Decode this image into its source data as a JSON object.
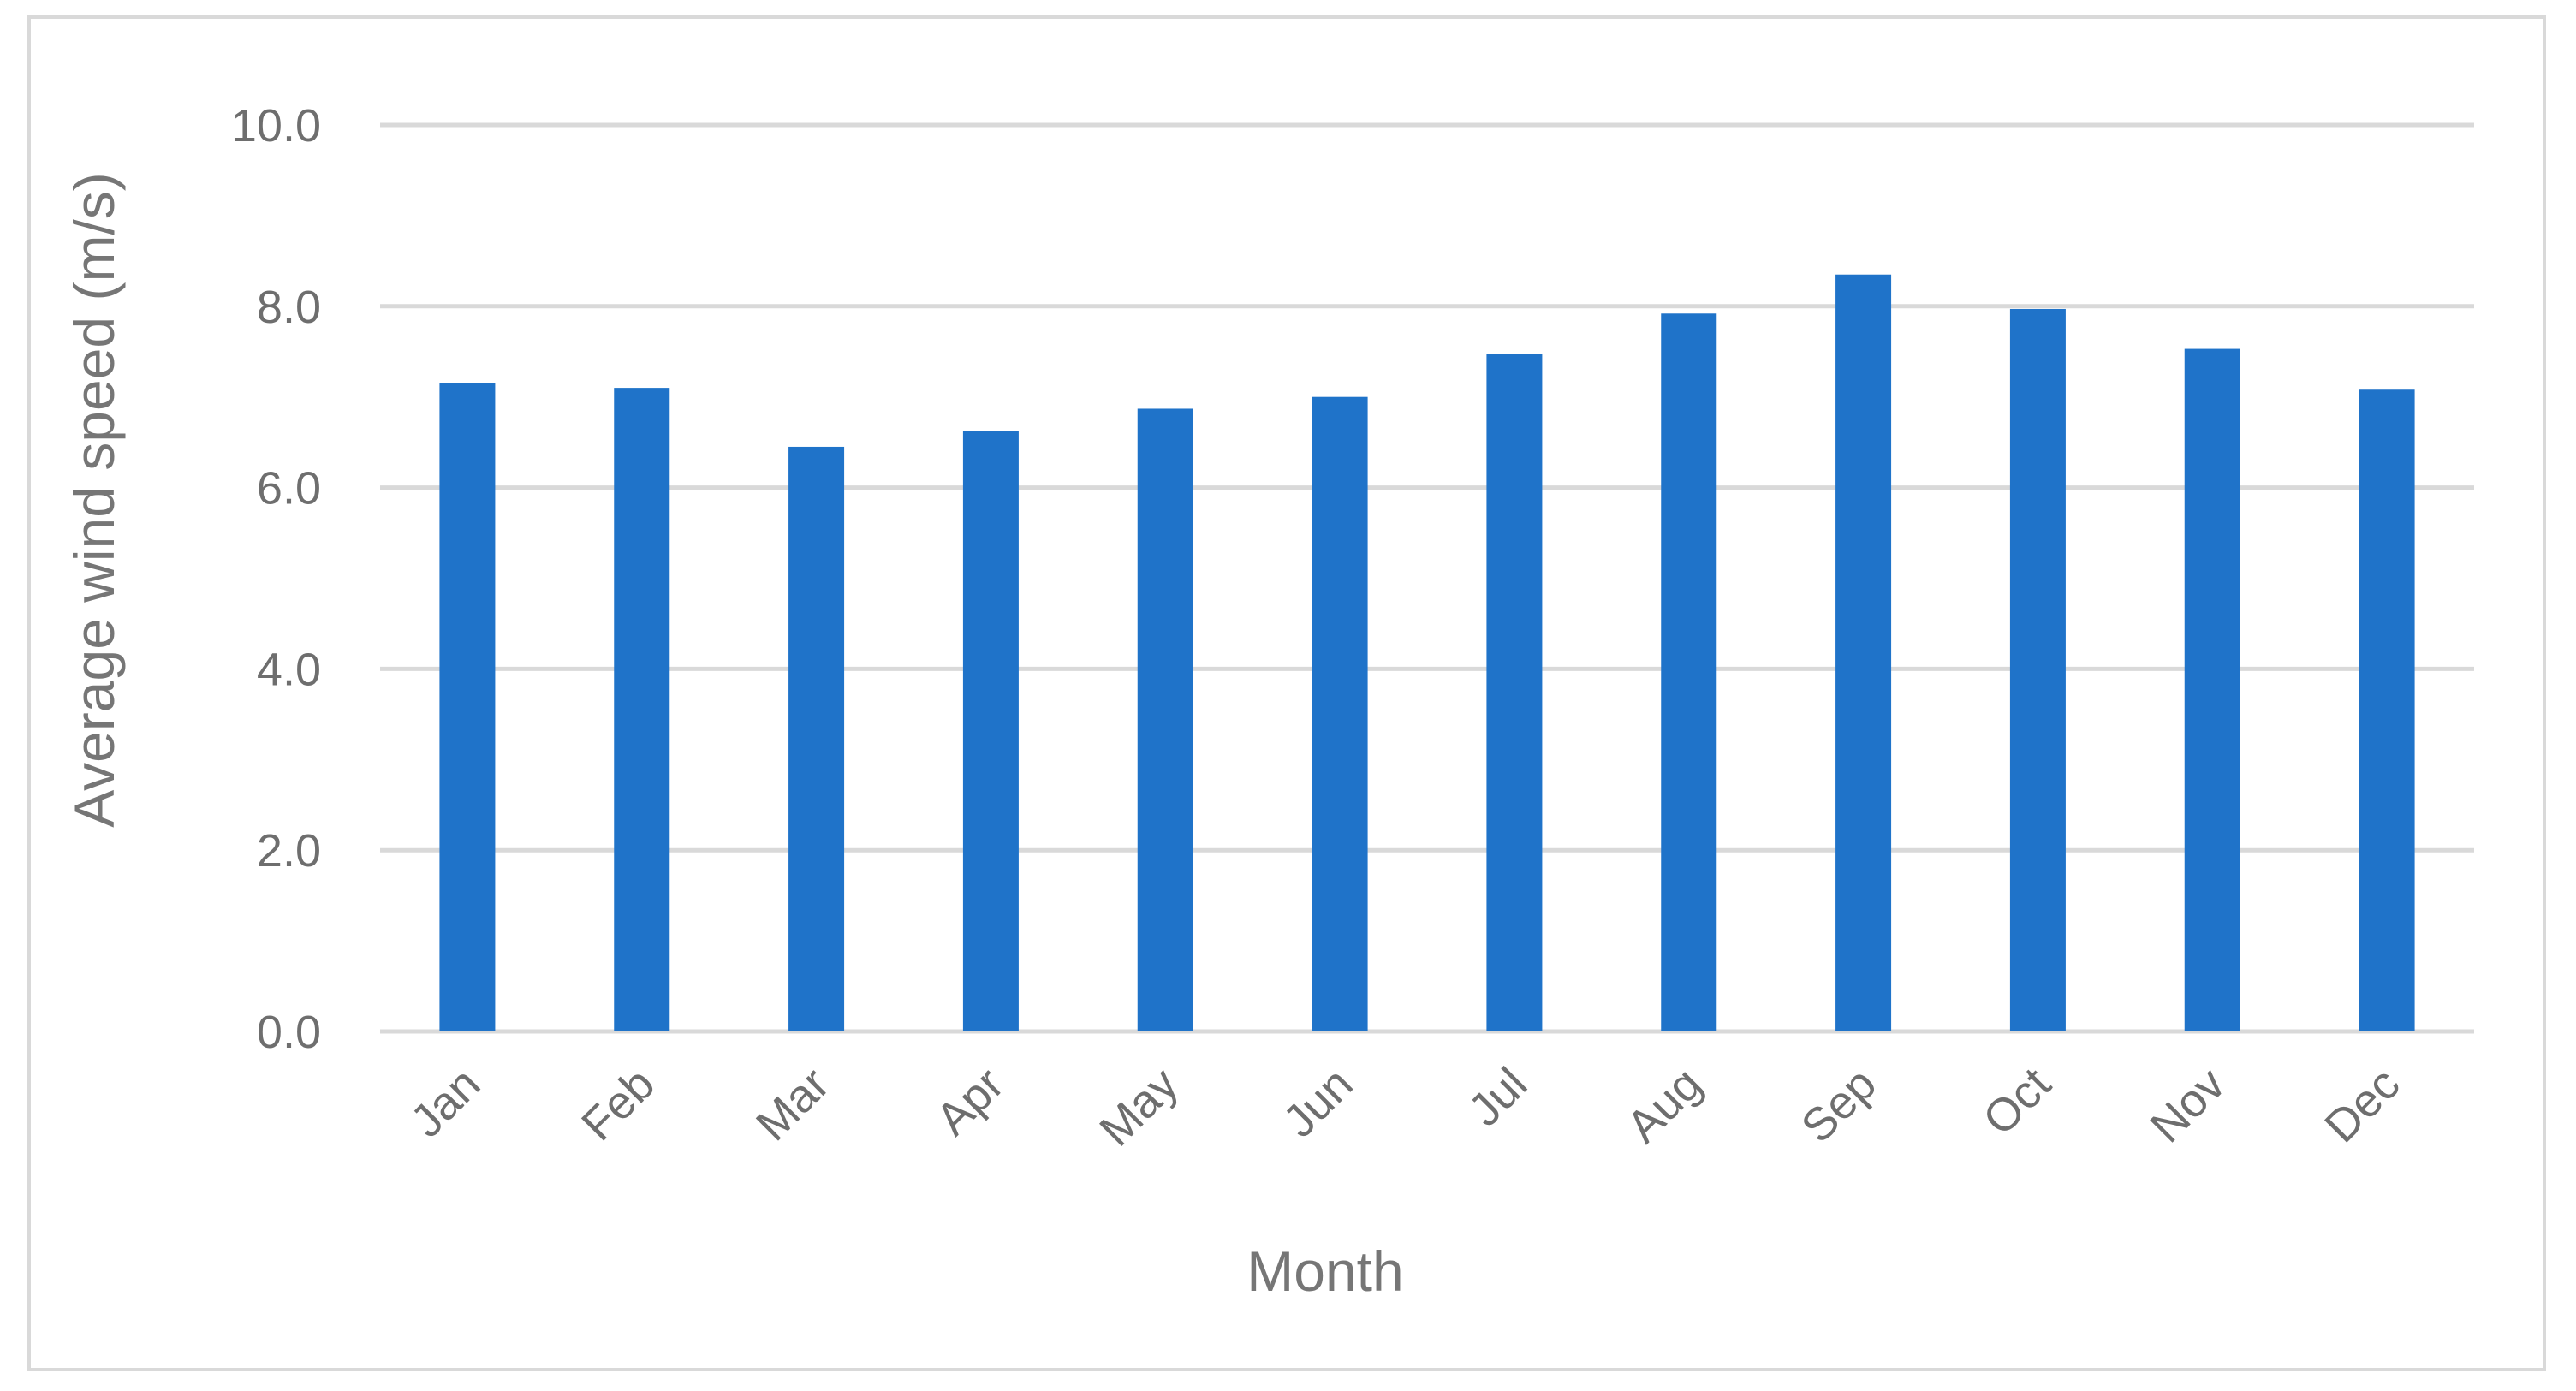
{
  "chart_data": {
    "type": "bar",
    "title": "",
    "xlabel": "Month",
    "ylabel": "Average wind speed (m/s)",
    "categories": [
      "Jan",
      "Feb",
      "Mar",
      "Apr",
      "May",
      "Jun",
      "Jul",
      "Aug",
      "Sep",
      "Oct",
      "Nov",
      "Dec"
    ],
    "values": [
      7.15,
      7.1,
      6.45,
      6.62,
      6.87,
      7.0,
      7.47,
      7.92,
      8.35,
      7.97,
      7.53,
      7.08
    ],
    "ylim": [
      0,
      10
    ],
    "yticks": [
      "0.0",
      "2.0",
      "4.0",
      "6.0",
      "8.0",
      "10.0"
    ],
    "grid": true,
    "legend": "none",
    "bar_color": "#1f73c9",
    "grid_color": "#d9d9d9"
  }
}
